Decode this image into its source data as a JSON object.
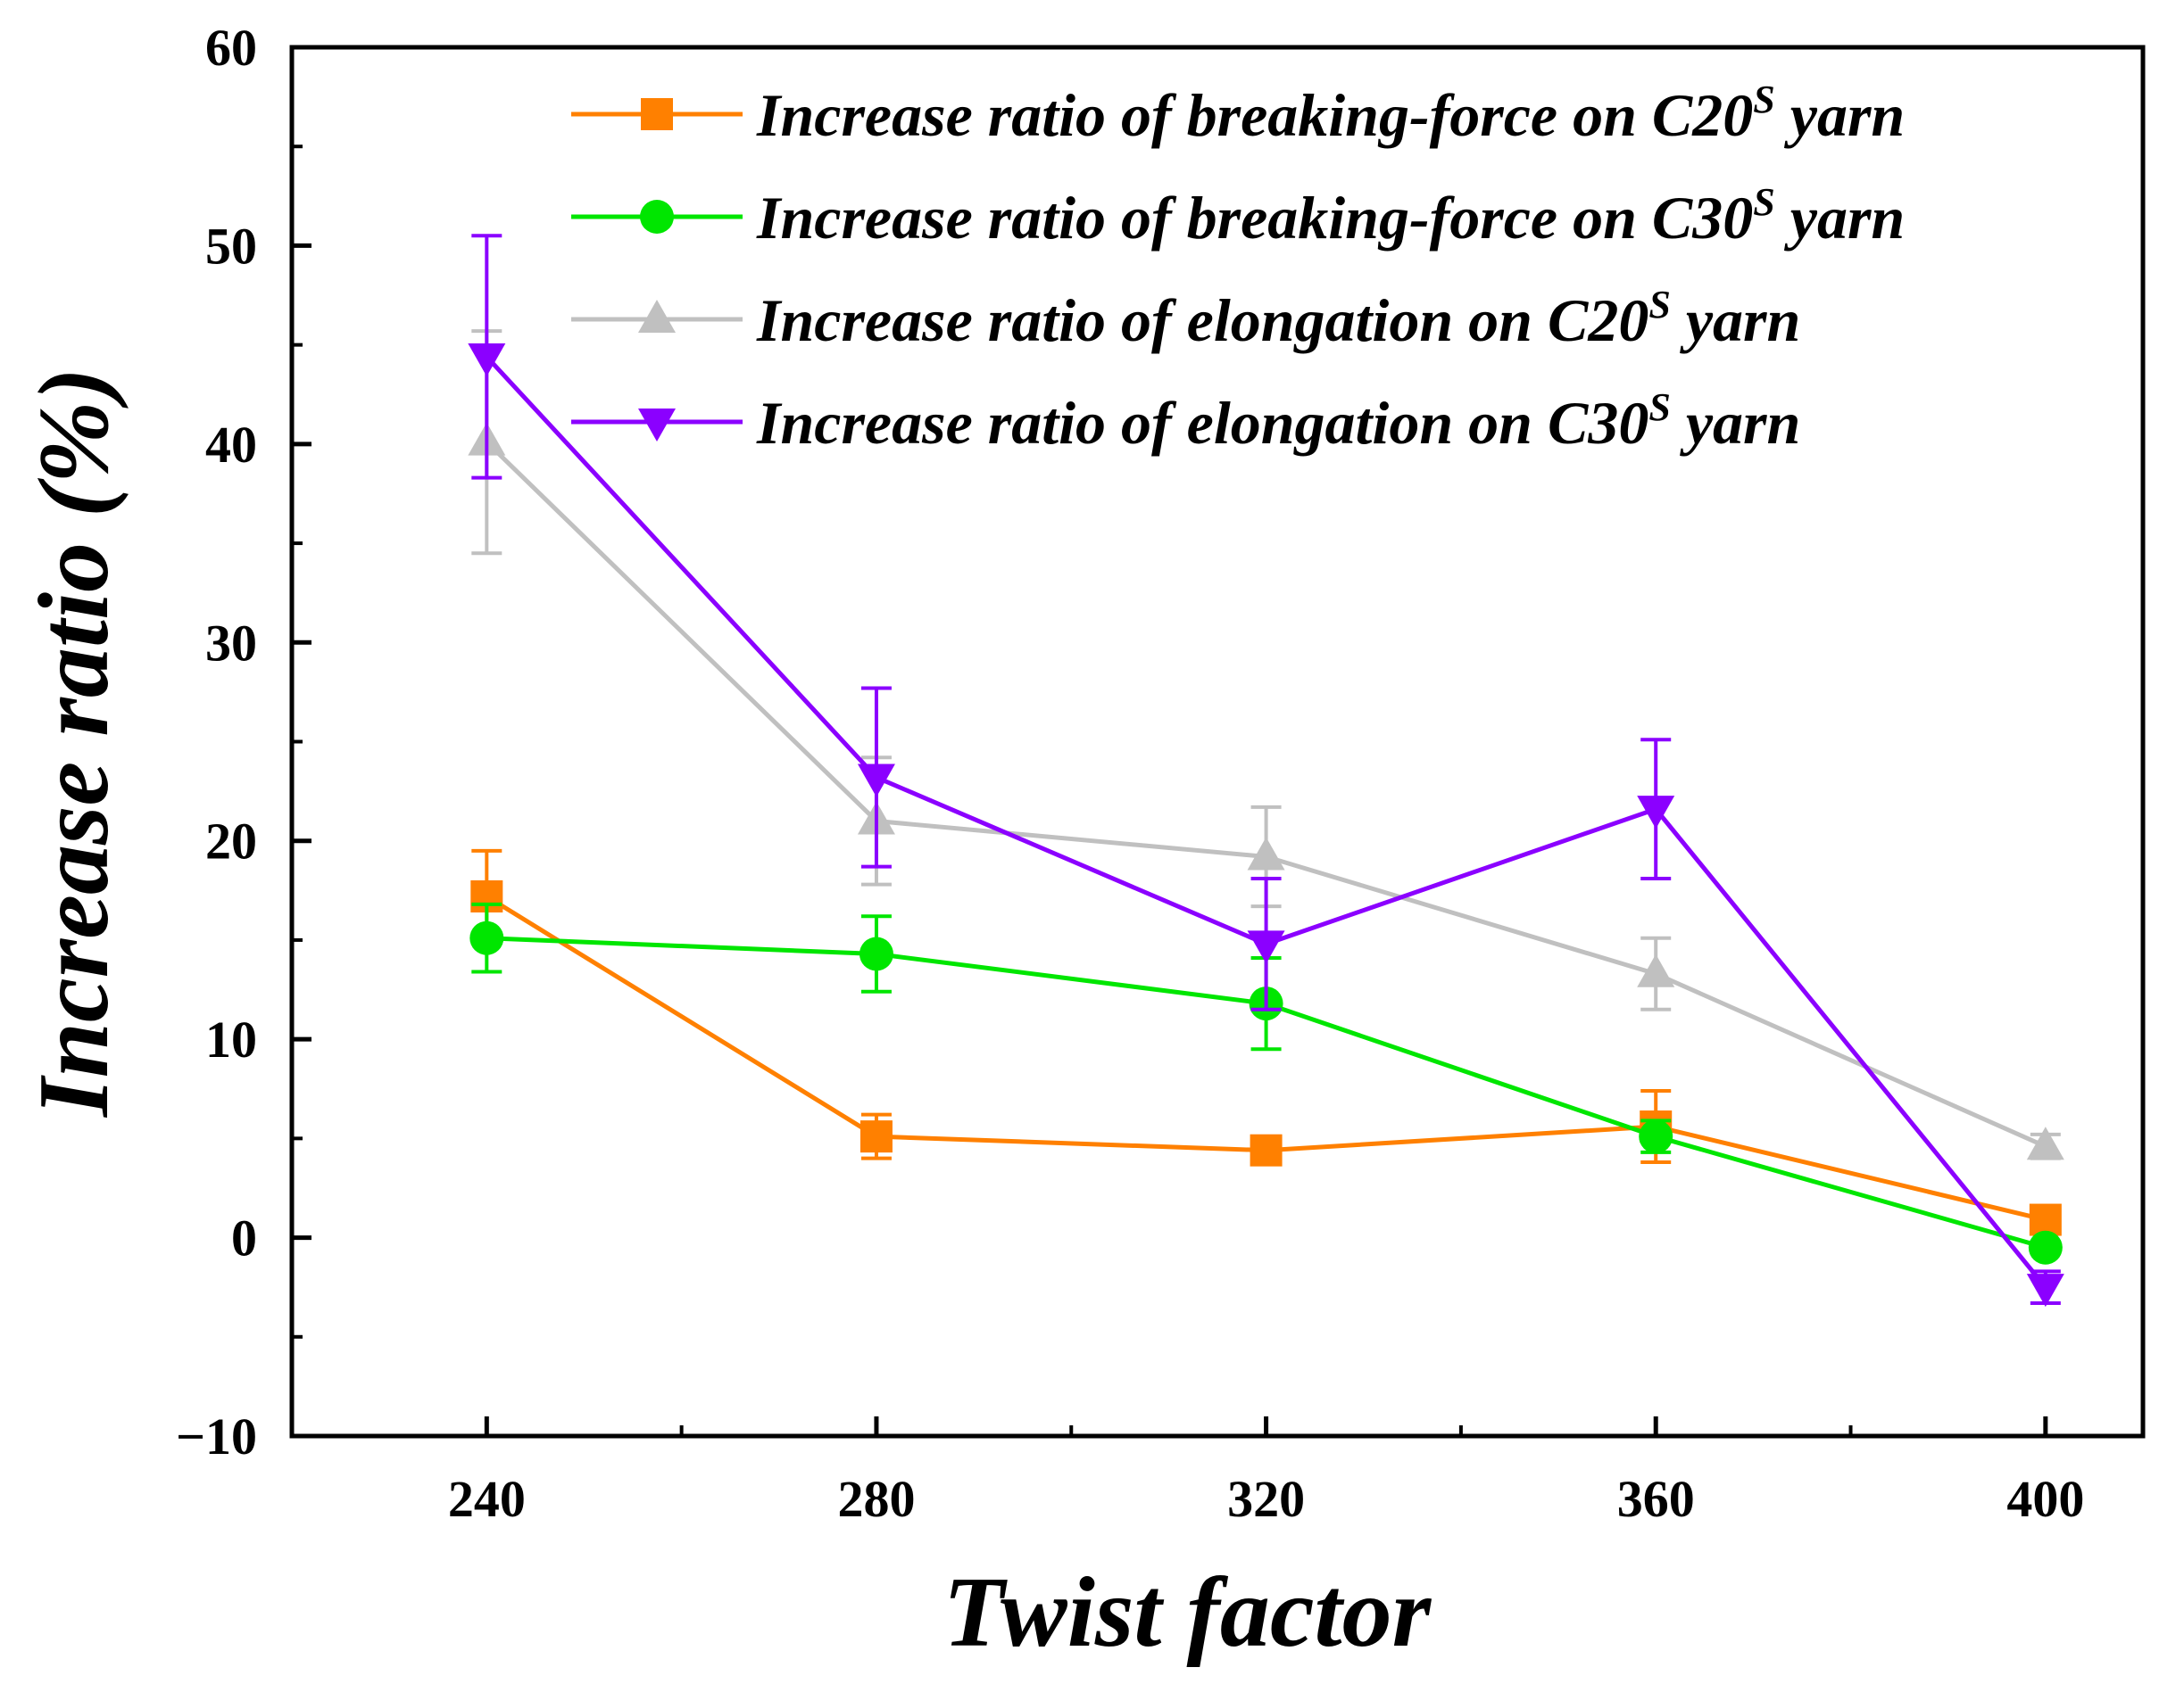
{
  "chart_data": {
    "type": "line",
    "title": "",
    "xlabel": "Twist factor",
    "ylabel": "Increase ratio (%)",
    "x": [
      240,
      280,
      320,
      360,
      400
    ],
    "x_tick_labels": [
      "240",
      "280",
      "320",
      "360",
      "400"
    ],
    "xlim": [
      220,
      410
    ],
    "ylim": [
      -10,
      60
    ],
    "y_ticks": [
      -10,
      0,
      10,
      20,
      30,
      40,
      50,
      60
    ],
    "y_tick_labels": [
      "−10",
      "0",
      "10",
      "20",
      "30",
      "40",
      "50",
      "60"
    ],
    "grid": false,
    "legend_position": "top-right",
    "series": [
      {
        "name": "Increase ratio of breaking-force on C20S yarn",
        "legend_prefix": "Increase ratio of breaking-force on C20",
        "legend_sup": "S",
        "legend_suffix": " yarn",
        "color": "#ff8000",
        "marker": "square",
        "values": [
          17.2,
          5.1,
          4.4,
          5.6,
          0.9
        ],
        "errors": [
          2.3,
          1.1,
          0.5,
          1.8,
          0.5
        ]
      },
      {
        "name": "Increase ratio of breaking-force on C30S yarn",
        "legend_prefix": "Increase ratio of breaking-force on C30",
        "legend_sup": "S",
        "legend_suffix": " yarn",
        "color": "#00e600",
        "marker": "circle",
        "values": [
          15.1,
          14.3,
          11.8,
          5.1,
          -0.5
        ],
        "errors": [
          1.7,
          1.9,
          2.3,
          0.8,
          0.3
        ]
      },
      {
        "name": "Increase ratio of elongation on C20S yarn",
        "legend_prefix": "Increase ratio of elongation on C20",
        "legend_sup": "S",
        "legend_suffix": " yarn",
        "color": "#c0c0c0",
        "marker": "triangle-up",
        "values": [
          40.1,
          21.0,
          19.2,
          13.3,
          4.6
        ],
        "errors": [
          5.6,
          3.2,
          2.5,
          1.8,
          0.6
        ]
      },
      {
        "name": "Increase ratio of elongation on C30S yarn",
        "legend_prefix": "Increase ratio of elongation on C30",
        "legend_sup": "S",
        "legend_suffix": " yarn",
        "color": "#8b00ff",
        "marker": "triangle-down",
        "values": [
          44.4,
          23.2,
          14.8,
          21.6,
          -2.5
        ],
        "errors": [
          6.1,
          4.5,
          3.3,
          3.5,
          0.8
        ]
      }
    ]
  }
}
